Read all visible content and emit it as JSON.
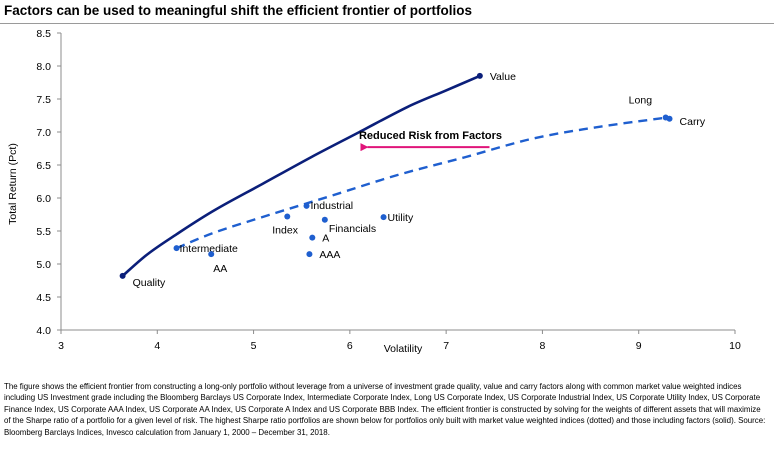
{
  "title": "Factors can be used to meaningful shift the efficient frontier of portfolios",
  "footnote": "The figure shows the efficient frontier from constructing a long-only portfolio without leverage from a universe of investment grade quality, value and carry factors along with common market value weighted indices including US Investment grade including the Bloomberg Barclays US Corporate Index, Intermediate Corporate Index, Long US Corporate Index, US Corporate Industrial Index, US Corporate Utility Index, US Corporate Finance Index, US Corporate AAA Index, US Corporate AA Index, US Corporate A Index and US Corporate BBB Index. The efficient frontier is constructed by solving for the weights of different assets that will maximize of the Sharpe ratio of a portfolio for a given level of risk. The highest Sharpe ratio portfolios are shown below for portfolios only built with market value weighted indices (dotted) and those including factors (solid). Source: Bloomberg Barclays Indices, Invesco calculation from January 1, 2000 – December 31, 2018.",
  "chart_data": {
    "type": "scatter",
    "xlabel": "Volatility",
    "ylabel": "Total Return (Pct)",
    "xlim": [
      3,
      10
    ],
    "ylim": [
      4.0,
      8.5
    ],
    "xticks": [
      "3",
      "4",
      "5",
      "6",
      "7",
      "8",
      "9",
      "10"
    ],
    "yticks": [
      "4.0",
      "4.5",
      "5.0",
      "5.5",
      "6.0",
      "6.5",
      "7.0",
      "7.5",
      "8.0",
      "8.5"
    ],
    "grid": false,
    "series": [
      {
        "style": "solid",
        "color": "#0b1f7a",
        "x": [
          3.64,
          3.9,
          4.2,
          4.6,
          5.1,
          5.6,
          6.1,
          6.6,
          7.0,
          7.35
        ],
        "y": [
          4.82,
          5.15,
          5.45,
          5.82,
          6.22,
          6.62,
          7.0,
          7.38,
          7.63,
          7.85
        ]
      },
      {
        "style": "dashed",
        "color": "#1f5fcf",
        "x": [
          4.2,
          4.6,
          5.2,
          5.8,
          6.5,
          7.2,
          7.9,
          8.6,
          9.3
        ],
        "y": [
          5.24,
          5.48,
          5.76,
          6.03,
          6.35,
          6.62,
          6.9,
          7.08,
          7.22
        ]
      }
    ],
    "points": [
      {
        "label": "Value",
        "x": 7.35,
        "y": 7.85,
        "color": "#0b1f7a"
      },
      {
        "label": "Quality",
        "x": 3.64,
        "y": 4.82,
        "color": "#0b1f7a"
      },
      {
        "label": "Long",
        "x": 9.28,
        "y": 7.22,
        "color": "#1f5fcf"
      },
      {
        "label": "Carry",
        "x": 9.32,
        "y": 7.2,
        "color": "#1f5fcf"
      },
      {
        "label": "Intermediate",
        "x": 4.2,
        "y": 5.24,
        "color": "#1f5fcf"
      },
      {
        "label": "AA",
        "x": 4.56,
        "y": 5.15,
        "color": "#1f5fcf"
      },
      {
        "label": "Industrial",
        "x": 5.55,
        "y": 5.88,
        "color": "#1f5fcf"
      },
      {
        "label": "Index",
        "x": 5.35,
        "y": 5.72,
        "color": "#1f5fcf"
      },
      {
        "label": "Financials",
        "x": 5.74,
        "y": 5.67,
        "color": "#1f5fcf"
      },
      {
        "label": "Utility",
        "x": 6.35,
        "y": 5.71,
        "color": "#1f5fcf"
      },
      {
        "label": "A",
        "x": 5.61,
        "y": 5.4,
        "color": "#1f5fcf"
      },
      {
        "label": "AAA",
        "x": 5.58,
        "y": 5.15,
        "color": "#1f5fcf"
      }
    ],
    "annotation": {
      "text": "Reduced Risk from Factors",
      "arrow_from": [
        7.45,
        6.77
      ],
      "arrow_to": [
        6.1,
        6.77
      ],
      "color": "#e0147a"
    }
  }
}
